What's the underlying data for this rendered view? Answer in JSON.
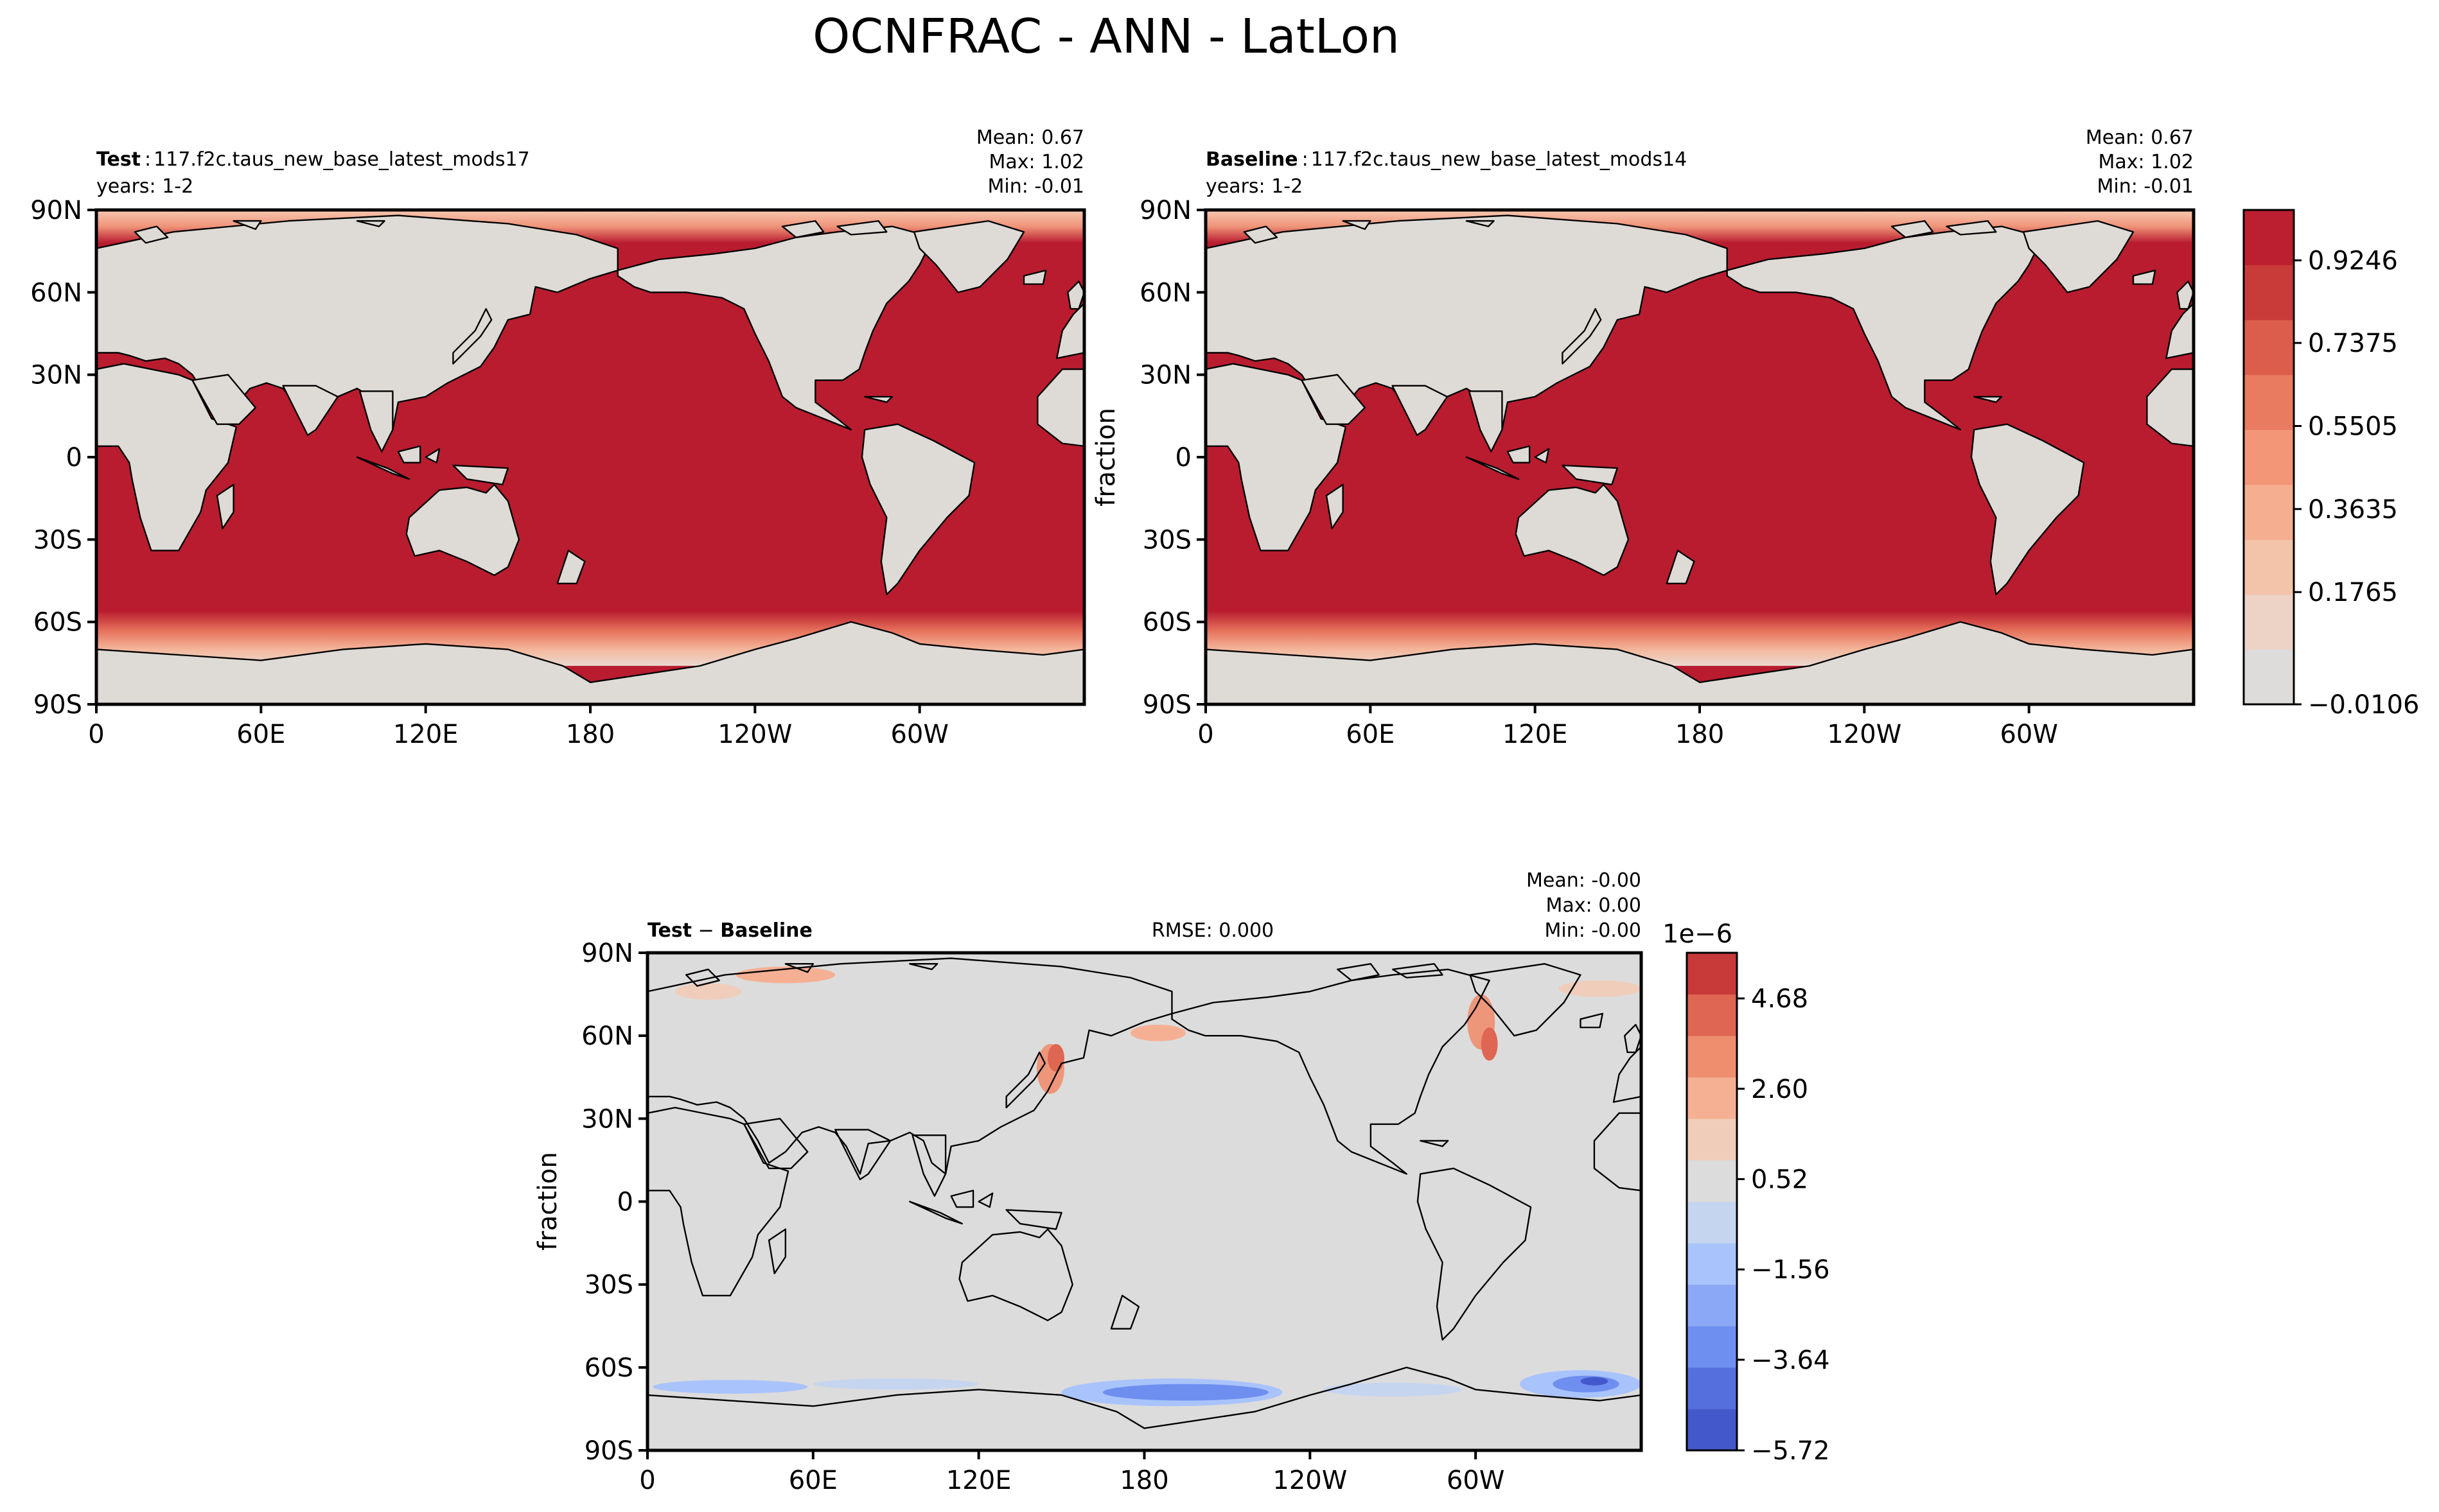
{
  "figure": {
    "title": "OCNFRAC - ANN - LatLon"
  },
  "panels": {
    "test": {
      "label_bold": "Test",
      "label_sep": ":",
      "case_name": "117.f2c.taus_new_base_latest_mods17",
      "years": "years: 1-2",
      "stats": {
        "mean": "Mean:  0.67",
        "max": "Max:  1.02",
        "min": "Min: -0.01"
      }
    },
    "baseline": {
      "label_bold": "Baseline",
      "label_sep": ":",
      "case_name": "117.f2c.taus_new_base_latest_mods14",
      "years": "years: 1-2",
      "ylabel": "fraction",
      "stats": {
        "mean": "Mean:  0.67",
        "max": "Max:  1.02",
        "min": "Min: -0.01"
      }
    },
    "diff": {
      "label_test": "Test",
      "label_minus": " − ",
      "label_base": "Baseline",
      "rmse": "RMSE: 0.000",
      "ylabel": "fraction",
      "stats": {
        "mean": "Mean: -0.00",
        "max": "Max:  0.00",
        "min": "Min: -0.00"
      }
    }
  },
  "colors": {
    "land": "#dedad6",
    "ocean": "#b91c2f",
    "diff_bg": "#dcdcdc",
    "coast": "#000000"
  },
  "chart_data": [
    {
      "type": "heatmap",
      "panel": "test",
      "variable": "OCNFRAC",
      "x_ticks": [
        "0",
        "60E",
        "120E",
        "180",
        "120W",
        "60W"
      ],
      "y_ticks": [
        "90N",
        "60N",
        "30N",
        "0",
        "30S",
        "60S",
        "90S"
      ],
      "xlim": [
        0,
        360
      ],
      "ylim": [
        -90,
        90
      ],
      "stats": {
        "mean": 0.67,
        "max": 1.02,
        "min": -0.01
      }
    },
    {
      "type": "heatmap",
      "panel": "baseline",
      "variable": "OCNFRAC",
      "x_ticks": [
        "0",
        "60E",
        "120E",
        "180",
        "120W",
        "60W"
      ],
      "y_ticks": [
        "90N",
        "60N",
        "30N",
        "0",
        "30S",
        "60S",
        "90S"
      ],
      "xlim": [
        0,
        360
      ],
      "ylim": [
        -90,
        90
      ],
      "stats": {
        "mean": 0.67,
        "max": 1.02,
        "min": -0.01
      },
      "colorbar": {
        "tick_labels": [
          "0.9246",
          "0.7375",
          "0.5505",
          "0.3635",
          "0.1765",
          "−0.0106"
        ],
        "levels": [
          -0.0106,
          0.1765,
          0.3635,
          0.5505,
          0.7375,
          0.9246
        ],
        "colors": [
          "#dddcdb",
          "#ecd3c6",
          "#f3c3aa",
          "#f5ae8f",
          "#f29677",
          "#e97b61",
          "#dc5d4b",
          "#c93b39",
          "#bc1f2f"
        ]
      }
    },
    {
      "type": "heatmap",
      "panel": "diff",
      "variable": "OCNFRAC",
      "x_ticks": [
        "0",
        "60E",
        "120E",
        "180",
        "120W",
        "60W"
      ],
      "y_ticks": [
        "90N",
        "60N",
        "30N",
        "0",
        "30S",
        "60S",
        "90S"
      ],
      "xlim": [
        0,
        360
      ],
      "ylim": [
        -90,
        90
      ],
      "stats": {
        "mean": -0.0,
        "max": 0.0,
        "min": -0.0,
        "rmse": 0.0
      },
      "colorbar": {
        "scale_label": "1e−6",
        "tick_labels": [
          "4.68",
          "2.60",
          "0.52",
          "−1.56",
          "−3.64",
          "−5.72"
        ],
        "levels": [
          4.68,
          2.6,
          0.52,
          -1.56,
          -3.64,
          -5.72
        ],
        "colors": [
          "#c73a39",
          "#de6652",
          "#ee8e6e",
          "#f5b093",
          "#f0cdbb",
          "#dcdcdc",
          "#c5d5f0",
          "#a9c3fc",
          "#8ba8f7",
          "#6e8ef0",
          "#5570dd",
          "#4358ca"
        ]
      }
    }
  ]
}
